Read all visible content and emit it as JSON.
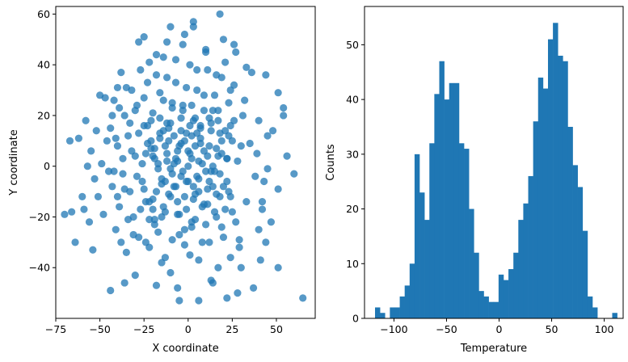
{
  "chart_data": [
    {
      "type": "scatter",
      "xlabel": "X coordinate",
      "ylabel": "Y coordinate",
      "xlim": [
        -75,
        72
      ],
      "ylim": [
        -60,
        63
      ],
      "xticks": [
        -75,
        -50,
        -25,
        0,
        25,
        50
      ],
      "yticks": [
        -40,
        -20,
        0,
        20,
        40,
        60
      ],
      "grid": false,
      "color": "#1f77b4",
      "alpha": 0.75,
      "points": [
        [
          -70,
          -19
        ],
        [
          65,
          -52
        ],
        [
          60,
          -3
        ],
        [
          56,
          4
        ],
        [
          54,
          20
        ],
        [
          54,
          23
        ],
        [
          51,
          29
        ],
        [
          51,
          -9
        ],
        [
          51,
          -40
        ],
        [
          48,
          14
        ],
        [
          45,
          12
        ],
        [
          45,
          -1
        ],
        [
          44,
          36
        ],
        [
          43,
          -6
        ],
        [
          42,
          -14
        ],
        [
          41,
          -37
        ],
        [
          40,
          -25
        ],
        [
          39,
          5
        ],
        [
          37,
          -48
        ],
        [
          36,
          37
        ],
        [
          33,
          39
        ],
        [
          32,
          26
        ],
        [
          30,
          8
        ],
        [
          29,
          -32
        ],
        [
          29,
          -29
        ],
        [
          28,
          -50
        ],
        [
          27,
          45
        ],
        [
          26,
          18
        ],
        [
          25,
          -18
        ],
        [
          24,
          30
        ],
        [
          23,
          -10
        ],
        [
          22,
          3
        ],
        [
          21,
          41
        ],
        [
          20,
          50
        ],
        [
          19,
          -24
        ],
        [
          18,
          13
        ],
        [
          17,
          -40
        ],
        [
          16,
          36
        ],
        [
          15,
          -2
        ],
        [
          14,
          22
        ],
        [
          13,
          -45
        ],
        [
          12,
          8
        ],
        [
          11,
          -15
        ],
        [
          10,
          45
        ],
        [
          9,
          28
        ],
        [
          8,
          -30
        ],
        [
          7,
          16
        ],
        [
          6,
          -5
        ],
        [
          5,
          38
        ],
        [
          4,
          -21
        ],
        [
          3,
          55
        ],
        [
          2,
          12
        ],
        [
          1,
          -35
        ],
        [
          0,
          6
        ],
        [
          -1,
          31
        ],
        [
          -2,
          -12
        ],
        [
          -3,
          48
        ],
        [
          -4,
          19
        ],
        [
          -5,
          -27
        ],
        [
          -6,
          2
        ],
        [
          -7,
          42
        ],
        [
          -8,
          -8
        ],
        [
          -9,
          25
        ],
        [
          -10,
          -42
        ],
        [
          -11,
          10
        ],
        [
          -12,
          35
        ],
        [
          -13,
          -18
        ],
        [
          -14,
          14
        ],
        [
          -15,
          -38
        ],
        [
          -16,
          29
        ],
        [
          -17,
          -1
        ],
        [
          -18,
          44
        ],
        [
          -19,
          -23
        ],
        [
          -20,
          21
        ],
        [
          -21,
          7
        ],
        [
          -22,
          -32
        ],
        [
          -23,
          33
        ],
        [
          -24,
          -14
        ],
        [
          -25,
          16
        ],
        [
          -26,
          -6
        ],
        [
          -27,
          38
        ],
        [
          -28,
          -28
        ],
        [
          -29,
          24
        ],
        [
          -30,
          4
        ],
        [
          -31,
          -20
        ],
        [
          -32,
          30
        ],
        [
          -33,
          -10
        ],
        [
          -34,
          12
        ],
        [
          -35,
          -34
        ],
        [
          -36,
          20
        ],
        [
          -37,
          -3
        ],
        [
          -38,
          37
        ],
        [
          -39,
          -16
        ],
        [
          -40,
          8
        ],
        [
          -41,
          -25
        ],
        [
          -42,
          26
        ],
        [
          -43,
          -8
        ],
        [
          -44,
          15
        ],
        [
          -45,
          -2
        ],
        [
          -46,
          10
        ],
        [
          -48,
          -19
        ],
        [
          -49,
          1
        ],
        [
          -50,
          28
        ],
        [
          -51,
          -12
        ],
        [
          -52,
          14
        ],
        [
          -53,
          -5
        ],
        [
          -54,
          -33
        ],
        [
          -55,
          6
        ],
        [
          -56,
          -22
        ],
        [
          -57,
          0
        ],
        [
          -58,
          18
        ],
        [
          -59,
          -17
        ],
        [
          -60,
          -12
        ],
        [
          -62,
          11
        ],
        [
          -64,
          -30
        ],
        [
          -66,
          -18
        ],
        [
          -67,
          10
        ],
        [
          -47,
          27
        ],
        [
          -44,
          -49
        ],
        [
          -36,
          -46
        ],
        [
          -30,
          -43
        ],
        [
          -25,
          51
        ],
        [
          -22,
          41
        ],
        [
          -18,
          -47
        ],
        [
          -12,
          49
        ],
        [
          -10,
          55
        ],
        [
          -6,
          -48
        ],
        [
          -2,
          52
        ],
        [
          3,
          57
        ],
        [
          6,
          -53
        ],
        [
          10,
          46
        ],
        [
          14,
          -46
        ],
        [
          18,
          60
        ],
        [
          22,
          -52
        ],
        [
          26,
          48
        ],
        [
          -5,
          -53
        ],
        [
          -14,
          43
        ],
        [
          -28,
          49
        ],
        [
          -40,
          31
        ],
        [
          47,
          -22
        ],
        [
          44,
          -30
        ],
        [
          42,
          -17
        ],
        [
          40,
          18
        ],
        [
          38,
          -4
        ],
        [
          35,
          9
        ],
        [
          33,
          -14
        ],
        [
          31,
          20
        ],
        [
          30,
          -40
        ],
        [
          28,
          2
        ],
        [
          27,
          -22
        ],
        [
          26,
          32
        ],
        [
          25,
          10
        ],
        [
          24,
          -36
        ],
        [
          23,
          25
        ],
        [
          22,
          -6
        ],
        [
          21,
          14
        ],
        [
          20,
          -28
        ],
        [
          19,
          35
        ],
        [
          18,
          -12
        ],
        [
          17,
          4
        ],
        [
          16,
          -20
        ],
        [
          15,
          28
        ],
        [
          14,
          -8
        ],
        [
          13,
          17
        ],
        [
          12,
          -30
        ],
        [
          11,
          38
        ],
        [
          10,
          -2
        ],
        [
          9,
          22
        ],
        [
          8,
          -16
        ],
        [
          7,
          9
        ],
        [
          6,
          -37
        ],
        [
          5,
          30
        ],
        [
          4,
          -11
        ],
        [
          3,
          18
        ],
        [
          2,
          -24
        ],
        [
          1,
          40
        ],
        [
          0,
          -6
        ],
        [
          -1,
          13
        ],
        [
          -2,
          -31
        ],
        [
          -3,
          24
        ],
        [
          -4,
          -4
        ],
        [
          -5,
          8
        ],
        [
          -6,
          -19
        ],
        [
          -7,
          33
        ],
        [
          -8,
          1
        ],
        [
          -9,
          -29
        ],
        [
          -10,
          17
        ],
        [
          -11,
          -11
        ],
        [
          -12,
          5
        ],
        [
          -13,
          -36
        ],
        [
          -14,
          26
        ],
        [
          -15,
          -7
        ],
        [
          -16,
          11
        ],
        [
          -17,
          -26
        ],
        [
          -18,
          36
        ],
        [
          -19,
          3
        ],
        [
          -20,
          -13
        ],
        [
          -21,
          18
        ],
        [
          -22,
          -21
        ],
        [
          -23,
          9
        ],
        [
          -24,
          -30
        ],
        [
          -25,
          27
        ],
        [
          -26,
          1
        ],
        [
          -27,
          -17
        ],
        [
          -28,
          13
        ],
        [
          -29,
          -4
        ],
        [
          -30,
          22
        ],
        [
          -31,
          -27
        ],
        [
          -32,
          6
        ],
        [
          -33,
          17
        ],
        [
          -34,
          -21
        ],
        [
          -35,
          31
        ],
        [
          -36,
          -9
        ],
        [
          -37,
          3
        ],
        [
          -38,
          -30
        ],
        [
          -39,
          23
        ],
        [
          -40,
          -12
        ],
        [
          -41,
          11
        ],
        [
          -42,
          -2
        ],
        [
          -43,
          20
        ],
        [
          0,
          0
        ],
        [
          2,
          3
        ],
        [
          -3,
          -2
        ],
        [
          5,
          -4
        ],
        [
          -6,
          6
        ],
        [
          8,
          1
        ],
        [
          -9,
          -3
        ],
        [
          4,
          8
        ],
        [
          -2,
          10
        ],
        [
          6,
          -10
        ],
        [
          -7,
          -8
        ],
        [
          11,
          4
        ],
        [
          -12,
          2
        ],
        [
          3,
          -13
        ],
        [
          -4,
          14
        ],
        [
          12,
          -6
        ],
        [
          -13,
          8
        ],
        [
          7,
          11
        ],
        [
          -10,
          -12
        ],
        [
          14,
          0
        ],
        [
          -15,
          -5
        ],
        [
          1,
          16
        ],
        [
          -1,
          -17
        ],
        [
          16,
          7
        ],
        [
          -17,
          1
        ],
        [
          9,
          -15
        ],
        [
          -11,
          15
        ],
        [
          18,
          -3
        ],
        [
          -18,
          -10
        ],
        [
          4,
          19
        ],
        [
          -5,
          -19
        ],
        [
          19,
          10
        ],
        [
          -20,
          4
        ],
        [
          13,
          14
        ],
        [
          -14,
          -16
        ],
        [
          20,
          -8
        ],
        [
          -21,
          10
        ],
        [
          2,
          -22
        ],
        [
          -3,
          22
        ],
        [
          22,
          3
        ],
        [
          15,
          -18
        ],
        [
          -16,
          19
        ],
        [
          23,
          12
        ],
        [
          -22,
          -14
        ],
        [
          10,
          -23
        ],
        [
          -9,
          23
        ],
        [
          24,
          -12
        ],
        [
          -24,
          5
        ],
        [
          17,
          18
        ],
        [
          -19,
          -21
        ],
        [
          1,
          5
        ],
        [
          -1,
          -6
        ],
        [
          6,
          2
        ],
        [
          -7,
          3
        ],
        [
          3,
          -8
        ],
        [
          -4,
          9
        ],
        [
          9,
          6
        ],
        [
          -10,
          -1
        ],
        [
          11,
          -9
        ],
        [
          -8,
          12
        ],
        [
          5,
          13
        ],
        [
          -6,
          -14
        ],
        [
          13,
          -2
        ],
        [
          -13,
          -6
        ],
        [
          7,
          15
        ],
        [
          -12,
          17
        ],
        [
          16,
          -11
        ],
        [
          -16,
          13
        ],
        [
          12,
          19
        ],
        [
          -15,
          -20
        ],
        [
          19,
          5
        ],
        [
          -19,
          7
        ],
        [
          2,
          24
        ],
        [
          -2,
          -25
        ],
        [
          21,
          -17
        ],
        [
          -20,
          -17
        ],
        [
          17,
          22
        ],
        [
          -23,
          16
        ],
        [
          24,
          16
        ],
        [
          -25,
          -9
        ]
      ]
    },
    {
      "type": "bar",
      "xlabel": "Temperature",
      "ylabel": "Counts",
      "xlim": [
        -128,
        118
      ],
      "ylim": [
        0,
        57
      ],
      "xticks": [
        -100,
        -50,
        0,
        50,
        100
      ],
      "yticks": [
        0,
        10,
        20,
        30,
        40,
        50
      ],
      "grid": false,
      "color": "#1f77b4",
      "bin_edges": [
        -118,
        -113.3,
        -108.6,
        -103.9,
        -99.2,
        -94.5,
        -89.8,
        -85.1,
        -80.4,
        -75.7,
        -71,
        -66.3,
        -61.6,
        -56.9,
        -52.2,
        -47.5,
        -42.8,
        -38.1,
        -33.4,
        -28.7,
        -24,
        -19.3,
        -14.6,
        -9.9,
        -5.2,
        -0.5,
        4.2,
        8.9,
        13.6,
        18.3,
        23,
        27.7,
        32.4,
        37.1,
        41.8,
        46.5,
        51.2,
        55.9,
        60.6,
        65.3,
        70,
        74.7,
        79.4,
        84.1,
        88.8,
        93.5,
        98.2,
        102.9,
        107.6,
        112.3
      ],
      "values": [
        2,
        1,
        0,
        2,
        2,
        4,
        6,
        10,
        30,
        23,
        18,
        32,
        41,
        47,
        40,
        43,
        43,
        32,
        31,
        20,
        12,
        5,
        4,
        3,
        3,
        8,
        7,
        9,
        12,
        18,
        21,
        26,
        36,
        44,
        42,
        51,
        54,
        48,
        47,
        35,
        28,
        24,
        16,
        4,
        2,
        0,
        0,
        0,
        1
      ]
    }
  ]
}
